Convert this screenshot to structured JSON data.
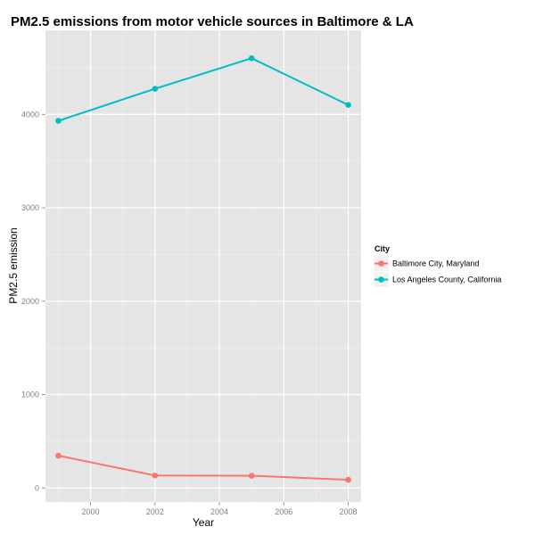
{
  "chart_data": {
    "type": "line",
    "title": "PM2.5 emissions from motor vehicle sources in Baltimore & LA",
    "xlabel": "Year",
    "ylabel": "PM2.5 emission",
    "x": [
      1999,
      2002,
      2005,
      2008
    ],
    "xlim": [
      1998.6,
      2008.4
    ],
    "ylim": [
      -150,
      4900
    ],
    "x_ticks": [
      2000,
      2002,
      2004,
      2006,
      2008
    ],
    "x_tick_labels": [
      "2000",
      "2002",
      "2004",
      "2006",
      "2008"
    ],
    "y_ticks": [
      0,
      1000,
      2000,
      3000,
      4000
    ],
    "y_tick_labels": [
      "0",
      "1000",
      "2000",
      "3000",
      "4000"
    ],
    "grid": true,
    "legend": {
      "title": "City",
      "placement": "right"
    },
    "series": [
      {
        "name": "Baltimore City, Maryland",
        "color": "#F8766D",
        "values": [
          346,
          134,
          131,
          88
        ]
      },
      {
        "name": "Los Angeles County, California",
        "color": "#00BFC4",
        "values": [
          3931,
          4274,
          4601,
          4101
        ]
      }
    ]
  }
}
